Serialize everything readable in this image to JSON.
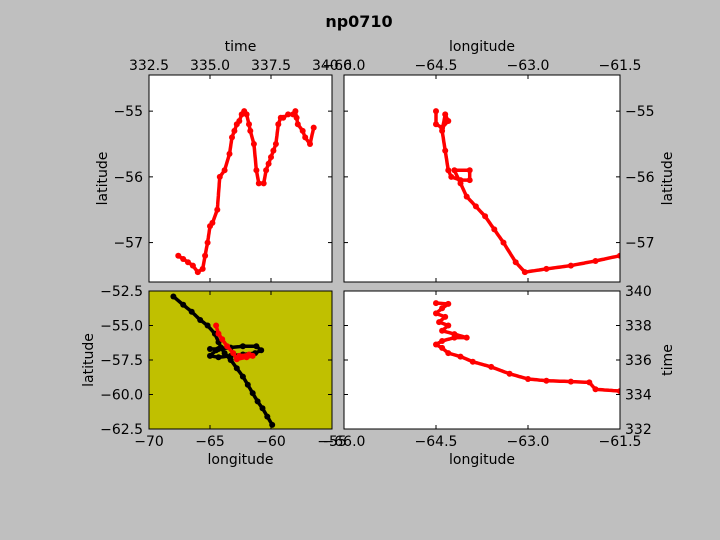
{
  "figure": {
    "title": "np0710",
    "background": "#bfbfbf",
    "track_color": "#ff0000",
    "ship_color": "#000000",
    "map_background": "#c0c000"
  },
  "chart_data": [
    {
      "id": "time-lat",
      "type": "scatter",
      "xlabel": "time",
      "ylabel": "latitude",
      "xlim": [
        332.5,
        340.0
      ],
      "ylim": [
        -57.6,
        -54.45
      ],
      "xticks": [
        "332.5",
        "335.0",
        "337.5",
        "340.0"
      ],
      "xtick_values": [
        332.5,
        335.0,
        337.5,
        340.0
      ],
      "yticks": [
        "−55",
        "−56",
        "−57"
      ],
      "ytick_values": [
        -55,
        -56,
        -57
      ],
      "x_axis": "top",
      "y_axis": "left",
      "series": [
        {
          "color": "#ff0000",
          "points": [
            [
              333.7,
              -57.2
            ],
            [
              333.9,
              -57.25
            ],
            [
              334.1,
              -57.3
            ],
            [
              334.3,
              -57.35
            ],
            [
              334.5,
              -57.45
            ],
            [
              334.7,
              -57.4
            ],
            [
              334.8,
              -57.2
            ],
            [
              334.9,
              -57.0
            ],
            [
              335.0,
              -56.75
            ],
            [
              335.1,
              -56.7
            ],
            [
              335.3,
              -56.5
            ],
            [
              335.4,
              -56.0
            ],
            [
              335.6,
              -55.9
            ],
            [
              335.8,
              -55.65
            ],
            [
              335.9,
              -55.4
            ],
            [
              336.0,
              -55.3
            ],
            [
              336.1,
              -55.2
            ],
            [
              336.2,
              -55.15
            ],
            [
              336.3,
              -55.05
            ],
            [
              336.4,
              -55.0
            ],
            [
              336.5,
              -55.05
            ],
            [
              336.6,
              -55.2
            ],
            [
              336.65,
              -55.3
            ],
            [
              336.8,
              -55.5
            ],
            [
              336.9,
              -55.9
            ],
            [
              337.0,
              -56.1
            ],
            [
              337.2,
              -56.1
            ],
            [
              337.3,
              -55.9
            ],
            [
              337.4,
              -55.8
            ],
            [
              337.5,
              -55.7
            ],
            [
              337.6,
              -55.6
            ],
            [
              337.7,
              -55.5
            ],
            [
              337.8,
              -55.2
            ],
            [
              337.9,
              -55.1
            ],
            [
              338.0,
              -55.1
            ],
            [
              338.2,
              -55.05
            ],
            [
              338.4,
              -55.05
            ],
            [
              338.5,
              -55.0
            ],
            [
              338.55,
              -55.1
            ],
            [
              338.6,
              -55.2
            ],
            [
              338.8,
              -55.3
            ],
            [
              338.9,
              -55.4
            ],
            [
              339.1,
              -55.5
            ],
            [
              339.25,
              -55.25
            ]
          ]
        }
      ]
    },
    {
      "id": "lon-lat",
      "type": "scatter",
      "xlabel": "longitude",
      "ylabel": "latitude",
      "xlim": [
        -66.0,
        -61.5
      ],
      "ylim": [
        -57.6,
        -54.45
      ],
      "xticks": [
        "−66.0",
        "−64.5",
        "−63.0",
        "−61.5"
      ],
      "xtick_values": [
        -66.0,
        -64.5,
        -63.0,
        -61.5
      ],
      "yticks": [
        "−55",
        "−56",
        "−57"
      ],
      "ytick_values": [
        -55,
        -56,
        -57
      ],
      "x_axis": "top",
      "y_axis": "right",
      "series": [
        {
          "color": "#ff0000",
          "points": [
            [
              -64.5,
              -55.0
            ],
            [
              -64.5,
              -55.2
            ],
            [
              -64.4,
              -55.25
            ],
            [
              -64.3,
              -55.15
            ],
            [
              -64.35,
              -55.05
            ],
            [
              -64.4,
              -55.3
            ],
            [
              -64.35,
              -55.6
            ],
            [
              -64.3,
              -55.9
            ],
            [
              -64.25,
              -56.0
            ],
            [
              -64.1,
              -56.05
            ],
            [
              -63.95,
              -56.05
            ],
            [
              -63.95,
              -55.9
            ],
            [
              -64.2,
              -55.9
            ],
            [
              -64.1,
              -56.1
            ],
            [
              -64.0,
              -56.3
            ],
            [
              -63.85,
              -56.45
            ],
            [
              -63.7,
              -56.6
            ],
            [
              -63.55,
              -56.8
            ],
            [
              -63.4,
              -57.0
            ],
            [
              -63.2,
              -57.3
            ],
            [
              -63.05,
              -57.45
            ],
            [
              -62.7,
              -57.4
            ],
            [
              -62.3,
              -57.35
            ],
            [
              -61.9,
              -57.28
            ],
            [
              -61.5,
              -57.2
            ]
          ]
        }
      ]
    },
    {
      "id": "map",
      "type": "scatter",
      "xlabel": "longitude",
      "ylabel": "latitude",
      "xlim": [
        -70.0,
        -55.0
      ],
      "ylim": [
        -62.5,
        -52.5
      ],
      "xticks": [
        "−70",
        "−65",
        "−60",
        "−55"
      ],
      "xtick_values": [
        -70,
        -65,
        -60,
        -55
      ],
      "yticks": [
        "−52.5",
        "−55.0",
        "−57.5",
        "−60.0",
        "−62.5"
      ],
      "ytick_values": [
        -52.5,
        -55.0,
        -57.5,
        -60.0,
        -62.5
      ],
      "x_axis": "bottom",
      "y_axis": "left",
      "background": "#c0c000",
      "series": [
        {
          "color": "#000000",
          "points": [
            [
              -68.0,
              -52.9
            ],
            [
              -67.2,
              -53.5
            ],
            [
              -66.5,
              -54.0
            ],
            [
              -65.8,
              -54.6
            ],
            [
              -65.2,
              -55.0
            ],
            [
              -64.6,
              -55.6
            ],
            [
              -64.3,
              -56.2
            ],
            [
              -64.1,
              -56.6
            ],
            [
              -63.8,
              -57.0
            ],
            [
              -63.3,
              -57.5
            ],
            [
              -62.8,
              -58.1
            ],
            [
              -62.3,
              -58.7
            ],
            [
              -61.9,
              -59.3
            ],
            [
              -61.5,
              -59.9
            ],
            [
              -61.1,
              -60.5
            ],
            [
              -60.7,
              -61.0
            ],
            [
              -60.3,
              -61.6
            ],
            [
              -59.9,
              -62.2
            ]
          ]
        },
        {
          "color": "#000000",
          "points": [
            [
              -65.0,
              -56.7
            ],
            [
              -64.3,
              -56.7
            ],
            [
              -63.3,
              -56.6
            ],
            [
              -62.3,
              -56.5
            ],
            [
              -61.2,
              -56.5
            ],
            [
              -60.8,
              -56.8
            ],
            [
              -61.3,
              -57.0
            ],
            [
              -62.3,
              -57.1
            ],
            [
              -63.3,
              -57.2
            ],
            [
              -64.3,
              -57.3
            ],
            [
              -65.0,
              -57.2
            ],
            [
              -64.5,
              -56.8
            ]
          ]
        },
        {
          "color": "#ff0000",
          "points": [
            [
              -64.5,
              -55.0
            ],
            [
              -64.3,
              -55.6
            ],
            [
              -64.0,
              -56.0
            ],
            [
              -63.6,
              -56.5
            ],
            [
              -63.1,
              -57.0
            ],
            [
              -62.8,
              -57.45
            ],
            [
              -62.0,
              -57.3
            ],
            [
              -61.5,
              -57.2
            ],
            [
              -61.8,
              -57.1
            ],
            [
              -62.6,
              -57.2
            ]
          ]
        }
      ]
    },
    {
      "id": "lon-time",
      "type": "scatter",
      "xlabel": "longitude",
      "ylabel": "time",
      "xlim": [
        -66.0,
        -61.5
      ],
      "ylim": [
        332.0,
        340.0
      ],
      "xticks": [
        "−66.0",
        "−64.5",
        "−63.0",
        "−61.5"
      ],
      "xtick_values": [
        -66.0,
        -64.5,
        -63.0,
        -61.5
      ],
      "yticks": [
        "332",
        "334",
        "336",
        "338",
        "340"
      ],
      "ytick_values": [
        332,
        334,
        336,
        338,
        340
      ],
      "x_axis": "bottom",
      "y_axis": "right",
      "series": [
        {
          "color": "#ff0000",
          "points": [
            [
              -64.5,
              339.3
            ],
            [
              -64.3,
              339.25
            ],
            [
              -64.4,
              339.0
            ],
            [
              -64.5,
              338.7
            ],
            [
              -64.35,
              338.5
            ],
            [
              -64.45,
              338.2
            ],
            [
              -64.3,
              338.0
            ],
            [
              -64.4,
              337.7
            ],
            [
              -64.2,
              337.5
            ],
            [
              -64.0,
              337.3
            ],
            [
              -64.2,
              337.3
            ],
            [
              -64.4,
              337.1
            ],
            [
              -64.5,
              336.9
            ],
            [
              -64.4,
              336.7
            ],
            [
              -64.3,
              336.4
            ],
            [
              -64.1,
              336.2
            ],
            [
              -63.9,
              335.9
            ],
            [
              -63.6,
              335.6
            ],
            [
              -63.3,
              335.2
            ],
            [
              -63.0,
              334.9
            ],
            [
              -62.7,
              334.8
            ],
            [
              -62.3,
              334.75
            ],
            [
              -62.0,
              334.7
            ],
            [
              -61.9,
              334.3
            ],
            [
              -61.5,
              334.2
            ]
          ]
        }
      ]
    }
  ]
}
